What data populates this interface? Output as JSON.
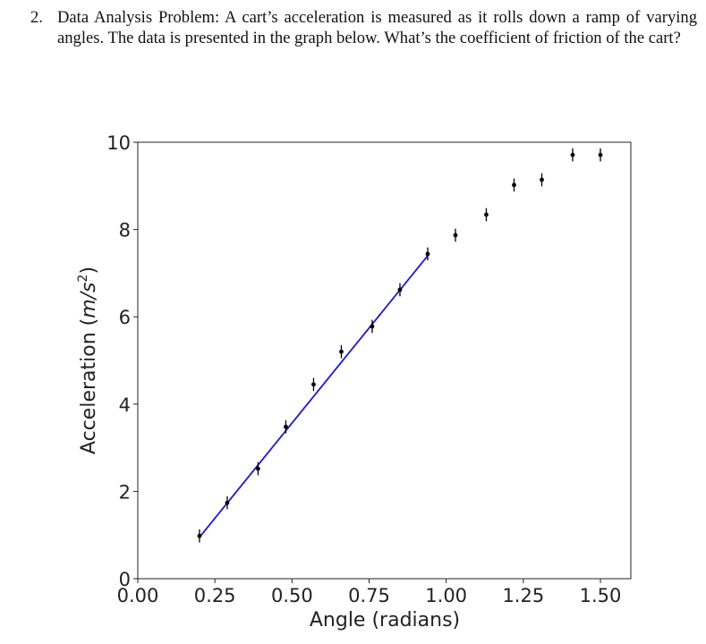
{
  "problem": {
    "number": "2.",
    "text": "Data Analysis Problem: A cart’s acceleration is measured as it rolls down a ramp of varying angles. The data is presented in the graph below. What’s the coefficient of friction of the cart?"
  },
  "chart_data": {
    "type": "scatter",
    "title": "",
    "xlabel": "Angle (radians)",
    "ylabel": "Acceleration (m/s²)",
    "xlim": [
      0,
      1.6
    ],
    "ylim": [
      0,
      10
    ],
    "xticks": [
      "0.00",
      "0.25",
      "0.50",
      "0.75",
      "1.00",
      "1.25",
      "1.50"
    ],
    "yticks": [
      "0",
      "2",
      "4",
      "6",
      "8",
      "10"
    ],
    "grid": false,
    "legend": null,
    "series": [
      {
        "name": "measured acceleration",
        "style": "black points with vertical error bars",
        "color": "#000000",
        "x": [
          0.2,
          0.29,
          0.39,
          0.48,
          0.57,
          0.66,
          0.76,
          0.85,
          0.94,
          1.03,
          1.13,
          1.22,
          1.31,
          1.41,
          1.5
        ],
        "y": [
          0.98,
          1.74,
          2.52,
          3.48,
          4.45,
          5.2,
          5.78,
          6.62,
          7.44,
          7.87,
          8.34,
          9.02,
          9.14,
          9.71,
          9.71
        ],
        "yerr": 0.15
      },
      {
        "name": "linear fit",
        "style": "line",
        "color": "#1a1acc",
        "x": [
          0.2,
          0.94
        ],
        "y": [
          0.95,
          7.4
        ]
      }
    ]
  }
}
